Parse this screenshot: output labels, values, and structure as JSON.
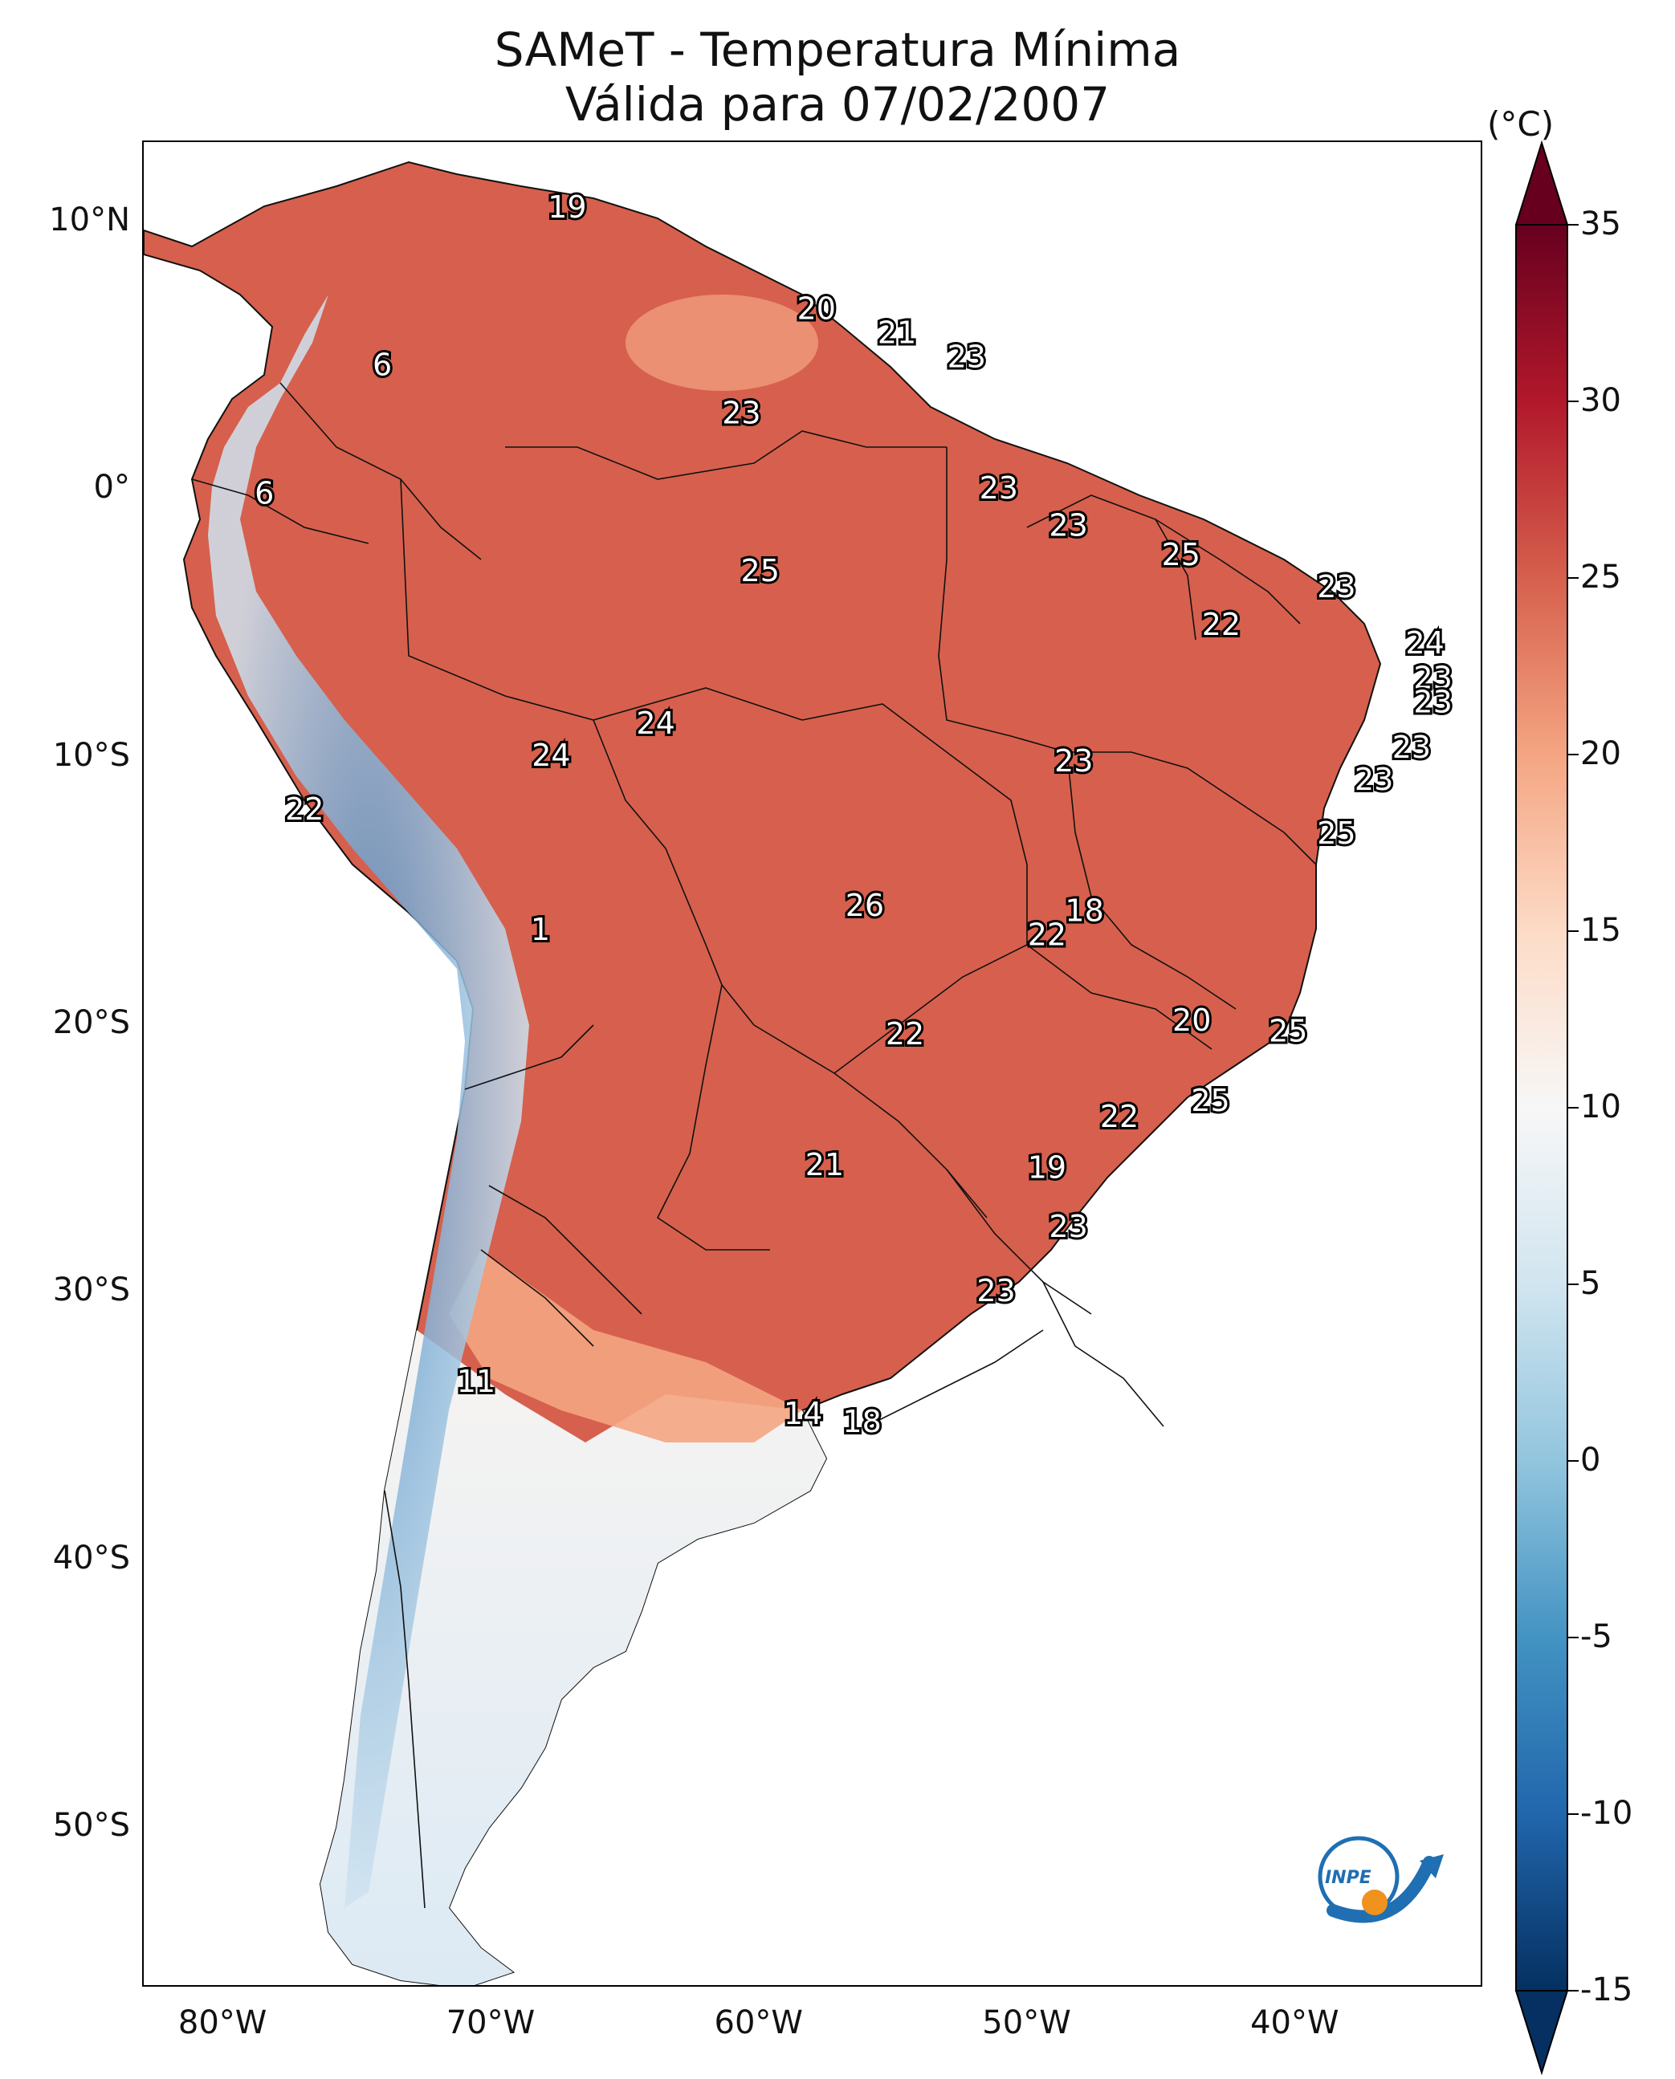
{
  "title": {
    "line1": "SAMeT - Temperatura Mínima",
    "line2": "Válida para 07/02/2007"
  },
  "axes": {
    "lat_ticks": [
      {
        "label": "10°N",
        "value": 10
      },
      {
        "label": "0°",
        "value": 0
      },
      {
        "label": "10°S",
        "value": -10
      },
      {
        "label": "20°S",
        "value": -20
      },
      {
        "label": "30°S",
        "value": -30
      },
      {
        "label": "40°S",
        "value": -40
      },
      {
        "label": "50°S",
        "value": -50
      }
    ],
    "lon_ticks": [
      {
        "label": "80°W",
        "value": -80
      },
      {
        "label": "70°W",
        "value": -70
      },
      {
        "label": "60°W",
        "value": -60
      },
      {
        "label": "50°W",
        "value": -50
      },
      {
        "label": "40°W",
        "value": -40
      }
    ],
    "lon_range": [
      -83,
      -33
    ],
    "lat_range": [
      -56,
      13
    ]
  },
  "colorbar": {
    "unit": "(°C)",
    "min": -15,
    "max": 35,
    "ticks": [
      "35",
      "30",
      "25",
      "20",
      "15",
      "10",
      "5",
      "0",
      "-5",
      "-10",
      "-15"
    ],
    "colors": [
      "#67001f",
      "#b2182b",
      "#d6604d",
      "#f4a582",
      "#fddbc7",
      "#f7f7f7",
      "#d1e5f0",
      "#92c5de",
      "#4393c3",
      "#2166ac",
      "#053061"
    ]
  },
  "logo": {
    "text": "INPE"
  },
  "station_values": [
    {
      "value": "19",
      "lon": -67.2,
      "lat": 10.5
    },
    {
      "value": "20",
      "lon": -57.9,
      "lat": 6.7
    },
    {
      "value": "21",
      "lon": -54.9,
      "lat": 5.8
    },
    {
      "value": "23",
      "lon": -52.3,
      "lat": 4.9
    },
    {
      "value": "6",
      "lon": -74.1,
      "lat": 4.6
    },
    {
      "value": "23",
      "lon": -60.7,
      "lat": 2.8
    },
    {
      "value": "6",
      "lon": -78.5,
      "lat": -0.2
    },
    {
      "value": "23",
      "lon": -51.1,
      "lat": 0.0
    },
    {
      "value": "23",
      "lon": -48.5,
      "lat": -1.4
    },
    {
      "value": "25",
      "lon": -44.3,
      "lat": -2.5
    },
    {
      "value": "25",
      "lon": -60.0,
      "lat": -3.1
    },
    {
      "value": "23",
      "lon": -38.5,
      "lat": -3.7
    },
    {
      "value": "22",
      "lon": -42.8,
      "lat": -5.1
    },
    {
      "value": "24",
      "lon": -35.2,
      "lat": -5.8
    },
    {
      "value": "23",
      "lon": -34.9,
      "lat": -7.1
    },
    {
      "value": "23",
      "lon": -34.9,
      "lat": -8.0
    },
    {
      "value": "24",
      "lon": -63.9,
      "lat": -8.8
    },
    {
      "value": "23",
      "lon": -35.7,
      "lat": -9.7
    },
    {
      "value": "24",
      "lon": -67.8,
      "lat": -10.0
    },
    {
      "value": "23",
      "lon": -48.3,
      "lat": -10.2
    },
    {
      "value": "23",
      "lon": -37.1,
      "lat": -10.9
    },
    {
      "value": "22",
      "lon": -77.0,
      "lat": -12.0
    },
    {
      "value": "25",
      "lon": -38.5,
      "lat": -12.9
    },
    {
      "value": "26",
      "lon": -56.1,
      "lat": -15.6
    },
    {
      "value": "18",
      "lon": -47.9,
      "lat": -15.8
    },
    {
      "value": "1",
      "lon": -68.2,
      "lat": -16.5
    },
    {
      "value": "22",
      "lon": -49.3,
      "lat": -16.7
    },
    {
      "value": "20",
      "lon": -43.9,
      "lat": -19.9
    },
    {
      "value": "22",
      "lon": -54.6,
      "lat": -20.4
    },
    {
      "value": "25",
      "lon": -40.3,
      "lat": -20.3
    },
    {
      "value": "25",
      "lon": -43.2,
      "lat": -22.9
    },
    {
      "value": "22",
      "lon": -46.6,
      "lat": -23.5
    },
    {
      "value": "21",
      "lon": -57.6,
      "lat": -25.3
    },
    {
      "value": "19",
      "lon": -49.3,
      "lat": -25.4
    },
    {
      "value": "23",
      "lon": -48.5,
      "lat": -27.6
    },
    {
      "value": "23",
      "lon": -51.2,
      "lat": -30.0
    },
    {
      "value": "11",
      "lon": -70.6,
      "lat": -33.4
    },
    {
      "value": "14",
      "lon": -58.4,
      "lat": -34.6
    },
    {
      "value": "18",
      "lon": -56.2,
      "lat": -34.9
    }
  ]
}
